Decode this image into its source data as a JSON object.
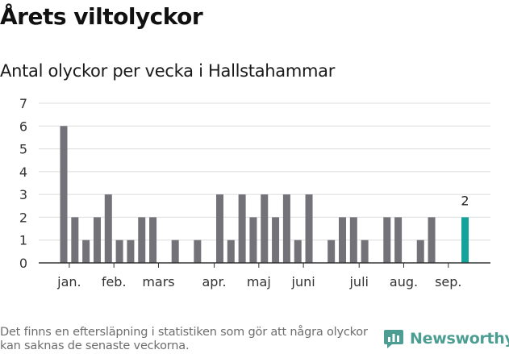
{
  "header": {
    "title": "Årets viltolyckor",
    "subtitle": "Antal olyckor per vecka i Hallstahammar"
  },
  "footer": {
    "note": "Det finns en eftersläpning i statistiken som gör att några olyckor kan saknas de senaste veckorna.",
    "brand": "Newsworthy"
  },
  "colors": {
    "bar": "#737278",
    "highlight": "#14a39a",
    "grid": "#dcdcdc",
    "axis": "#333333",
    "brand": "#4c9e92"
  },
  "icons": {
    "brand": "newsworthy-logo-icon"
  },
  "chart_data": {
    "type": "bar",
    "title": "",
    "xlabel": "",
    "ylabel": "",
    "ylim": [
      0,
      7
    ],
    "yticks": [
      0,
      1,
      2,
      3,
      4,
      5,
      6,
      7
    ],
    "grid": true,
    "legend": "none",
    "weeks": [
      1,
      2,
      3,
      4,
      5,
      6,
      7,
      8,
      9,
      10,
      11,
      12,
      13,
      14,
      15,
      16,
      17,
      18,
      19,
      20,
      21,
      22,
      23,
      24,
      25,
      26,
      27,
      28,
      29,
      30,
      31,
      32,
      33,
      34,
      35,
      36,
      37,
      38
    ],
    "values": [
      6,
      2,
      1,
      2,
      3,
      1,
      1,
      2,
      2,
      0,
      1,
      0,
      1,
      0,
      3,
      1,
      3,
      2,
      3,
      2,
      3,
      1,
      3,
      0,
      1,
      2,
      2,
      1,
      0,
      2,
      2,
      0,
      1,
      2,
      0,
      0,
      2,
      0
    ],
    "month_ticks": [
      {
        "label": "jan.",
        "week": 1.5
      },
      {
        "label": "feb.",
        "week": 5.5
      },
      {
        "label": "mars",
        "week": 9.5
      },
      {
        "label": "apr.",
        "week": 14.5
      },
      {
        "label": "maj",
        "week": 18.5
      },
      {
        "label": "juni",
        "week": 22.5
      },
      {
        "label": "juli",
        "week": 27.5
      },
      {
        "label": "aug.",
        "week": 31.5
      },
      {
        "label": "sep.",
        "week": 35.5
      }
    ],
    "highlight_week": 37,
    "data_labels": [
      {
        "week": 37,
        "value": 2,
        "label": "2"
      }
    ]
  }
}
